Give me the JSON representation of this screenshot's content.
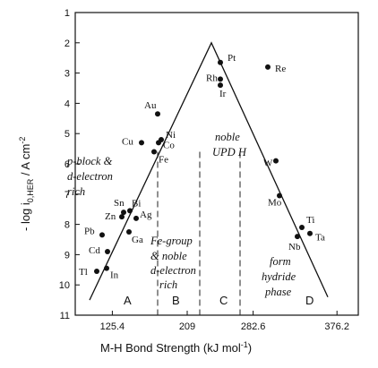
{
  "chart_data": {
    "type": "scatter",
    "xlabel": "M-H Bond Strength (kJ mol",
    "xlabel_sup": "-1",
    "xlabel_close": ")",
    "ylabel": "- log i",
    "ylabel_sub": "0,HER",
    "ylabel_tail": " / A cm",
    "ylabel_sup": "-2",
    "xlim": [
      84,
      400
    ],
    "ylim": [
      11,
      1
    ],
    "y_inverted": true,
    "x_ticks": [
      125.4,
      209,
      282.6,
      376.2
    ],
    "x_tick_labels": [
      "125.4",
      "209",
      "282.6",
      "376.2"
    ],
    "y_ticks": [
      1,
      2,
      3,
      4,
      5,
      6,
      7,
      8,
      9,
      10,
      11
    ],
    "y_tick_labels": [
      "1",
      "2",
      "3",
      "4",
      "5",
      "6",
      "7",
      "8",
      "9",
      "10",
      "11"
    ],
    "volcano_line": [
      {
        "x": 100,
        "y": 10.5
      },
      {
        "x": 236,
        "y": 2.0
      },
      {
        "x": 366,
        "y": 10.4
      }
    ],
    "region_dividers_x": [
      176,
      223,
      268
    ],
    "points": [
      {
        "label": "Pt",
        "x": 246,
        "y": 2.65
      },
      {
        "label": "Re",
        "x": 299,
        "y": 2.8
      },
      {
        "label": "Rh",
        "x": 246,
        "y": 3.2
      },
      {
        "label": "Ir",
        "x": 246,
        "y": 3.4
      },
      {
        "label": "Au",
        "x": 176,
        "y": 4.35
      },
      {
        "label": "Ni",
        "x": 180,
        "y": 5.2
      },
      {
        "label": "Cu",
        "x": 158,
        "y": 5.3
      },
      {
        "label": "Co",
        "x": 177,
        "y": 5.3
      },
      {
        "label": "Fe",
        "x": 172,
        "y": 5.6
      },
      {
        "label": "W",
        "x": 308,
        "y": 5.9
      },
      {
        "label": "Mo",
        "x": 312,
        "y": 7.05
      },
      {
        "label": "Sn",
        "x": 138,
        "y": 7.6
      },
      {
        "label": "Bi",
        "x": 145,
        "y": 7.55
      },
      {
        "label": "Zn",
        "x": 136,
        "y": 7.75
      },
      {
        "label": "Ag",
        "x": 152,
        "y": 7.8
      },
      {
        "label": "Pb",
        "x": 114,
        "y": 8.35
      },
      {
        "label": "Ga",
        "x": 144,
        "y": 8.25
      },
      {
        "label": "Ti",
        "x": 337,
        "y": 8.1
      },
      {
        "label": "Ta",
        "x": 346,
        "y": 8.3
      },
      {
        "label": "Nb",
        "x": 332,
        "y": 8.4
      },
      {
        "label": "Cd",
        "x": 120,
        "y": 8.9
      },
      {
        "label": "Tl",
        "x": 108,
        "y": 9.55
      },
      {
        "label": "In",
        "x": 119,
        "y": 9.45
      }
    ],
    "regions": {
      "A": {
        "letter": "A",
        "lines": [
          "p-block &",
          "d-electron",
          "rich"
        ]
      },
      "B": {
        "letter": "B",
        "lines": [
          "Fe-group",
          "& noble",
          "d-electron",
          "rich"
        ]
      },
      "C": {
        "letter": "C",
        "lines": [
          "noble",
          "UPD H"
        ]
      },
      "D": {
        "letter": "D",
        "lines": [
          "form",
          "hydride",
          "phase"
        ]
      }
    }
  }
}
